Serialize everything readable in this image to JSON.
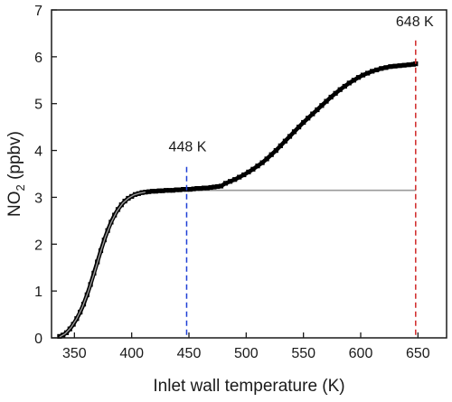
{
  "chart_data": {
    "type": "scatter",
    "xlabel": "Inlet wall temperature (K)",
    "ylabel_main": "NO",
    "ylabel_sub": "2",
    "ylabel_rest": " (ppbv)",
    "xlim": [
      330,
      675
    ],
    "ylim": [
      0,
      7
    ],
    "xticks": [
      350,
      400,
      450,
      500,
      550,
      600,
      650
    ],
    "yticks": [
      0,
      1,
      2,
      3,
      4,
      5,
      6,
      7
    ],
    "grid": false,
    "legend": "none",
    "annotations": [
      {
        "text": "448 K",
        "x": 448,
        "color": "#1f3fd6"
      },
      {
        "text": "648 K",
        "x": 648,
        "color": "#d02828"
      }
    ],
    "series": [
      {
        "kind": "measured",
        "color": "#000000",
        "points": [
          [
            337,
            0.03
          ],
          [
            340,
            0.06
          ],
          [
            343,
            0.11
          ],
          [
            346,
            0.19
          ],
          [
            349,
            0.29
          ],
          [
            352,
            0.41
          ],
          [
            355,
            0.55
          ],
          [
            358,
            0.72
          ],
          [
            361,
            0.92
          ],
          [
            364,
            1.14
          ],
          [
            367,
            1.38
          ],
          [
            370,
            1.62
          ],
          [
            373,
            1.86
          ],
          [
            376,
            2.09
          ],
          [
            379,
            2.29
          ],
          [
            382,
            2.47
          ],
          [
            385,
            2.62
          ],
          [
            388,
            2.74
          ],
          [
            391,
            2.84
          ],
          [
            394,
            2.92
          ],
          [
            397,
            2.98
          ],
          [
            400,
            3.02
          ],
          [
            403,
            3.06
          ],
          [
            406,
            3.08
          ],
          [
            409,
            3.1
          ],
          [
            412,
            3.11
          ],
          [
            415,
            3.12
          ],
          [
            418,
            3.13
          ],
          [
            421,
            3.13
          ],
          [
            424,
            3.14
          ],
          [
            427,
            3.14
          ],
          [
            430,
            3.15
          ],
          [
            433,
            3.15
          ],
          [
            436,
            3.15
          ],
          [
            439,
            3.16
          ],
          [
            442,
            3.16
          ],
          [
            445,
            3.17
          ],
          [
            448,
            3.17
          ],
          [
            451,
            3.17
          ],
          [
            454,
            3.18
          ],
          [
            457,
            3.19
          ],
          [
            460,
            3.19
          ],
          [
            463,
            3.2
          ],
          [
            466,
            3.2
          ],
          [
            469,
            3.21
          ],
          [
            472,
            3.22
          ],
          [
            475,
            3.23
          ],
          [
            478,
            3.24
          ],
          [
            482,
            3.3
          ],
          [
            486,
            3.34
          ],
          [
            490,
            3.38
          ],
          [
            494,
            3.43
          ],
          [
            498,
            3.48
          ],
          [
            502,
            3.54
          ],
          [
            506,
            3.6
          ],
          [
            510,
            3.67
          ],
          [
            514,
            3.74
          ],
          [
            518,
            3.82
          ],
          [
            522,
            3.91
          ],
          [
            526,
            4.0
          ],
          [
            530,
            4.1
          ],
          [
            534,
            4.2
          ],
          [
            538,
            4.3
          ],
          [
            542,
            4.4
          ],
          [
            546,
            4.5
          ],
          [
            550,
            4.6
          ],
          [
            554,
            4.69
          ],
          [
            558,
            4.78
          ],
          [
            562,
            4.87
          ],
          [
            566,
            4.96
          ],
          [
            570,
            5.05
          ],
          [
            574,
            5.14
          ],
          [
            578,
            5.22
          ],
          [
            582,
            5.3
          ],
          [
            586,
            5.37
          ],
          [
            590,
            5.44
          ],
          [
            594,
            5.5
          ],
          [
            598,
            5.56
          ],
          [
            602,
            5.61
          ],
          [
            606,
            5.65
          ],
          [
            610,
            5.69
          ],
          [
            614,
            5.72
          ],
          [
            618,
            5.75
          ],
          [
            622,
            5.77
          ],
          [
            626,
            5.79
          ],
          [
            630,
            5.8
          ],
          [
            634,
            5.81
          ],
          [
            638,
            5.82
          ],
          [
            642,
            5.83
          ],
          [
            646,
            5.84
          ],
          [
            648,
            5.85
          ]
        ]
      },
      {
        "kind": "fit",
        "color": "#9a9a9a",
        "points": [
          [
            337,
            0.02
          ],
          [
            342,
            0.09
          ],
          [
            347,
            0.22
          ],
          [
            352,
            0.41
          ],
          [
            357,
            0.66
          ],
          [
            362,
            0.98
          ],
          [
            367,
            1.36
          ],
          [
            372,
            1.77
          ],
          [
            377,
            2.15
          ],
          [
            382,
            2.46
          ],
          [
            387,
            2.7
          ],
          [
            392,
            2.87
          ],
          [
            397,
            2.98
          ],
          [
            402,
            3.05
          ],
          [
            407,
            3.09
          ],
          [
            412,
            3.11
          ],
          [
            420,
            3.13
          ],
          [
            430,
            3.14
          ],
          [
            440,
            3.15
          ],
          [
            460,
            3.15
          ],
          [
            500,
            3.15
          ],
          [
            560,
            3.15
          ],
          [
            620,
            3.15
          ],
          [
            648,
            3.15
          ]
        ]
      }
    ]
  }
}
